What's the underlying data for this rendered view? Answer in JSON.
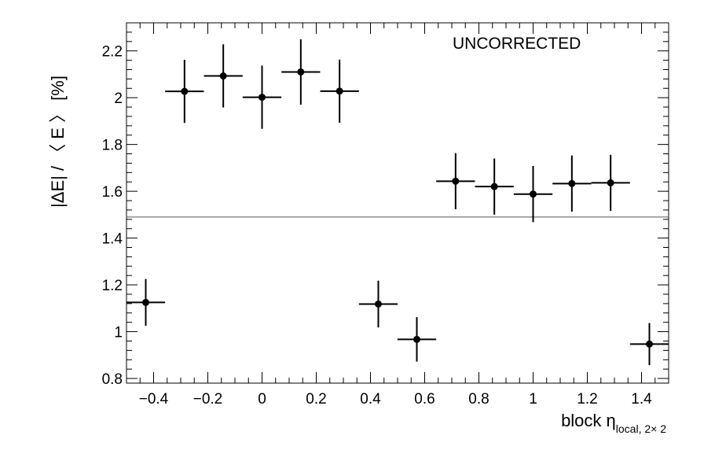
{
  "chart_data": {
    "type": "scatter",
    "xlabel_main": "block η",
    "xlabel_sub": "local, 2× 2",
    "ylabel": "|ΔE| / 〈 E 〉 [%]",
    "annotation": "UNCORRECTED",
    "xlim": [
      -0.5,
      1.5
    ],
    "ylim": [
      0.78,
      2.32
    ],
    "x_ticks": [
      -0.4,
      -0.2,
      0,
      0.2,
      0.4,
      0.6,
      0.8,
      1,
      1.2,
      1.4
    ],
    "x_tick_labels": [
      "−0.4",
      "−0.2",
      "0",
      "0.2",
      "0.4",
      "0.6",
      "0.8",
      "1",
      "1.2",
      "1.4"
    ],
    "y_ticks": [
      0.8,
      1.0,
      1.2,
      1.4,
      1.6,
      1.8,
      2.0,
      2.2
    ],
    "y_tick_labels": [
      "0.8",
      "1",
      "1.2",
      "1.4",
      "1.6",
      "1.8",
      "2",
      "2.2"
    ],
    "reference_line": 1.49,
    "grid": false,
    "points": [
      {
        "x": -0.429,
        "y": 1.125,
        "xerr": 0.0714,
        "yerr": 0.1
      },
      {
        "x": -0.286,
        "y": 2.027,
        "xerr": 0.0714,
        "yerr": 0.135
      },
      {
        "x": -0.143,
        "y": 2.093,
        "xerr": 0.0714,
        "yerr": 0.135
      },
      {
        "x": 0.0,
        "y": 2.002,
        "xerr": 0.0714,
        "yerr": 0.135
      },
      {
        "x": 0.143,
        "y": 2.11,
        "xerr": 0.0714,
        "yerr": 0.14
      },
      {
        "x": 0.286,
        "y": 2.028,
        "xerr": 0.0714,
        "yerr": 0.135
      },
      {
        "x": 0.429,
        "y": 1.118,
        "xerr": 0.0714,
        "yerr": 0.1
      },
      {
        "x": 0.571,
        "y": 0.967,
        "xerr": 0.0714,
        "yerr": 0.095
      },
      {
        "x": 0.714,
        "y": 1.643,
        "xerr": 0.0714,
        "yerr": 0.12
      },
      {
        "x": 0.857,
        "y": 1.62,
        "xerr": 0.0714,
        "yerr": 0.12
      },
      {
        "x": 1.0,
        "y": 1.588,
        "xerr": 0.0714,
        "yerr": 0.12
      },
      {
        "x": 1.143,
        "y": 1.633,
        "xerr": 0.0714,
        "yerr": 0.12
      },
      {
        "x": 1.286,
        "y": 1.636,
        "xerr": 0.0714,
        "yerr": 0.12
      },
      {
        "x": 1.429,
        "y": 0.947,
        "xerr": 0.0714,
        "yerr": 0.09
      }
    ]
  }
}
